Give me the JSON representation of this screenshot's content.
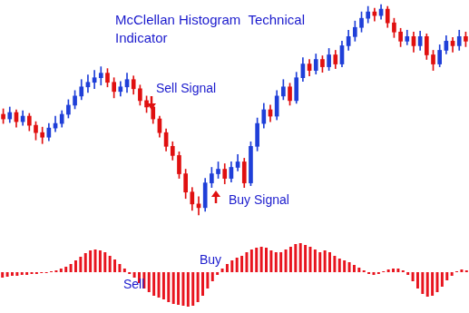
{
  "chart_data": [
    {
      "type": "candlestick",
      "title": "McClellan Histogram  Technical Indicator",
      "annotations": [
        "Sell Signal",
        "Buy Signal"
      ],
      "categories": [
        null,
        null,
        null,
        null,
        null,
        null,
        null,
        null,
        null,
        null,
        null,
        null,
        null,
        null,
        null,
        null,
        null,
        null,
        null,
        null,
        null,
        null,
        null,
        null,
        null,
        null,
        null,
        null,
        null,
        null,
        null,
        null,
        null,
        null,
        null,
        null,
        null,
        null,
        null,
        null,
        null,
        null,
        null,
        null,
        null,
        null,
        null,
        null,
        null,
        null,
        null,
        null,
        null,
        null,
        null,
        null,
        null,
        null,
        null,
        null,
        null,
        null,
        null,
        null,
        null,
        null,
        null,
        null,
        null,
        null,
        null,
        null
      ],
      "open": [
        120,
        115,
        122,
        112,
        118,
        108,
        100,
        95,
        105,
        110,
        120,
        130,
        140,
        150,
        155,
        160,
        165,
        155,
        145,
        150,
        158,
        148,
        135,
        128,
        115,
        100,
        85,
        75,
        55,
        35,
        22,
        18,
        45,
        55,
        60,
        50,
        62,
        68,
        45,
        85,
        110,
        125,
        118,
        140,
        150,
        135,
        160,
        175,
        168,
        180,
        172,
        185,
        175,
        195,
        205,
        215,
        225,
        232,
        228,
        235,
        220,
        210,
        200,
        205,
        195,
        205,
        185,
        175,
        190,
        200,
        195,
        205
      ],
      "high": [
        126,
        128,
        125,
        124,
        121,
        112,
        106,
        110,
        118,
        124,
        136,
        146,
        158,
        163,
        168,
        172,
        170,
        160,
        156,
        165,
        162,
        152,
        140,
        131,
        118,
        104,
        90,
        79,
        60,
        40,
        30,
        50,
        62,
        68,
        66,
        68,
        76,
        72,
        90,
        116,
        132,
        130,
        146,
        158,
        154,
        166,
        182,
        180,
        186,
        184,
        192,
        190,
        200,
        212,
        222,
        232,
        238,
        236,
        240,
        238,
        225,
        214,
        212,
        210,
        211,
        208,
        190,
        196,
        206,
        204,
        212,
        210
      ],
      "low": [
        110,
        111,
        106,
        108,
        102,
        92,
        88,
        91,
        101,
        106,
        116,
        126,
        136,
        144,
        148,
        152,
        150,
        138,
        140,
        144,
        142,
        130,
        122,
        110,
        95,
        80,
        70,
        50,
        28,
        15,
        10,
        14,
        40,
        50,
        44,
        46,
        58,
        40,
        42,
        80,
        105,
        112,
        114,
        136,
        130,
        132,
        156,
        162,
        164,
        166,
        168,
        170,
        172,
        190,
        200,
        210,
        220,
        222,
        224,
        215,
        204,
        194,
        196,
        188,
        190,
        180,
        168,
        172,
        186,
        188,
        190,
        194
      ],
      "close": [
        115,
        122,
        112,
        118,
        108,
        100,
        95,
        105,
        110,
        120,
        130,
        140,
        150,
        155,
        160,
        165,
        155,
        145,
        150,
        158,
        148,
        135,
        128,
        115,
        100,
        85,
        75,
        55,
        35,
        22,
        18,
        45,
        55,
        60,
        50,
        62,
        68,
        45,
        85,
        110,
        125,
        118,
        140,
        150,
        135,
        160,
        175,
        168,
        180,
        172,
        185,
        175,
        195,
        205,
        215,
        225,
        232,
        228,
        235,
        220,
        210,
        200,
        205,
        195,
        205,
        185,
        175,
        190,
        200,
        195,
        205,
        200
      ],
      "colors": [
        "#e01010",
        "#1f3fd8",
        "#e01010",
        "#1f3fd8",
        "#e01010",
        "#e01010",
        "#e01010",
        "#1f3fd8",
        "#1f3fd8",
        "#1f3fd8",
        "#1f3fd8",
        "#1f3fd8",
        "#1f3fd8",
        "#1f3fd8",
        "#1f3fd8",
        "#1f3fd8",
        "#e01010",
        "#e01010",
        "#1f3fd8",
        "#1f3fd8",
        "#e01010",
        "#e01010",
        "#e01010",
        "#e01010",
        "#e01010",
        "#e01010",
        "#e01010",
        "#e01010",
        "#e01010",
        "#e01010",
        "#e01010",
        "#1f3fd8",
        "#1f3fd8",
        "#1f3fd8",
        "#e01010",
        "#1f3fd8",
        "#1f3fd8",
        "#e01010",
        "#1f3fd8",
        "#1f3fd8",
        "#1f3fd8",
        "#e01010",
        "#1f3fd8",
        "#1f3fd8",
        "#e01010",
        "#1f3fd8",
        "#1f3fd8",
        "#e01010",
        "#1f3fd8",
        "#e01010",
        "#1f3fd8",
        "#e01010",
        "#1f3fd8",
        "#1f3fd8",
        "#1f3fd8",
        "#1f3fd8",
        "#1f3fd8",
        "#e01010",
        "#1f3fd8",
        "#e01010",
        "#e01010",
        "#e01010",
        "#1f3fd8",
        "#e01010",
        "#1f3fd8",
        "#e01010",
        "#e01010",
        "#1f3fd8",
        "#1f3fd8",
        "#e01010",
        "#1f3fd8",
        "#e01010"
      ],
      "ylim": [
        0,
        245
      ],
      "grid": false,
      "tick_labels": false
    },
    {
      "type": "bar",
      "annotations": [
        "Buy",
        "Sell"
      ],
      "categories": [
        null,
        null,
        null,
        null,
        null,
        null,
        null,
        null,
        null,
        null,
        null,
        null,
        null,
        null,
        null,
        null,
        null,
        null,
        null,
        null,
        null,
        null,
        null,
        null,
        null,
        null,
        null,
        null,
        null,
        null,
        null,
        null,
        null,
        null,
        null,
        null,
        null,
        null,
        null,
        null,
        null,
        null,
        null,
        null,
        null,
        null,
        null,
        null,
        null,
        null,
        null,
        null,
        null,
        null,
        null,
        null,
        null,
        null,
        null,
        null,
        null,
        null,
        null,
        null,
        null,
        null,
        null,
        null,
        null,
        null,
        null,
        null,
        null,
        null,
        null,
        null,
        null,
        null,
        null,
        null,
        null,
        null,
        null,
        null,
        null,
        null,
        null,
        null,
        null,
        null,
        null,
        null,
        null,
        null,
        null,
        null
      ],
      "values": [
        -6,
        -5,
        -4,
        -4,
        -3,
        -3,
        -2,
        -2,
        -1,
        -1,
        1,
        2,
        4,
        6,
        9,
        13,
        17,
        21,
        24,
        25,
        24,
        22,
        18,
        14,
        9,
        4,
        -2,
        -6,
        -12,
        -18,
        -22,
        -26,
        -28,
        -30,
        -33,
        -35,
        -36,
        -37,
        -38,
        -37,
        -33,
        -26,
        -18,
        -10,
        -3,
        4,
        9,
        13,
        16,
        18,
        22,
        25,
        27,
        28,
        27,
        24,
        22,
        22,
        25,
        28,
        31,
        32,
        30,
        28,
        25,
        22,
        24,
        22,
        18,
        15,
        13,
        11,
        8,
        5,
        2,
        -2,
        -3,
        -2,
        1,
        3,
        4,
        4,
        2,
        -3,
        -10,
        -18,
        -24,
        -27,
        -26,
        -22,
        -16,
        -9,
        -4,
        1,
        3,
        2
      ],
      "color": "#e8141e",
      "ylim": [
        -45,
        52
      ],
      "grid": false,
      "tick_labels": false
    }
  ]
}
